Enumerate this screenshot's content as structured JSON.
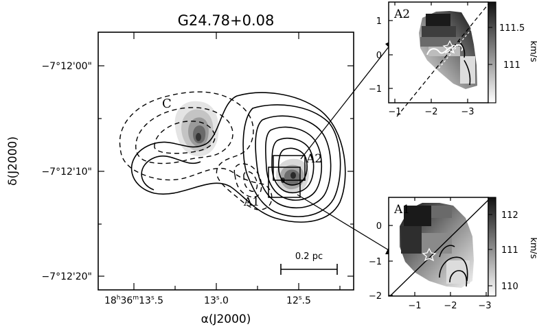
{
  "main_panel": {
    "title": "G24.78+0.08",
    "xlabel": "α(J2000)",
    "ylabel": "δ(J2000)",
    "x_ticks": [
      {
        "value": "18h36m13.5s",
        "parts": {
          "h": "18",
          "m": "36",
          "sec": "13",
          "frac": ".5"
        }
      },
      {
        "value": "13.0",
        "parts": {
          "sec": "13",
          "frac": ".0"
        }
      },
      {
        "value": "12.5",
        "parts": {
          "sec": "12",
          "frac": ".5"
        }
      }
    ],
    "y_ticks": [
      "−7°12'00\"",
      "−7°12'10\"",
      "−7°12'20\""
    ],
    "source_labels": {
      "c": "C",
      "a2": "A2",
      "a1": "A1"
    },
    "scalebar_label": "0.2 pc"
  },
  "inset_a2": {
    "label": "A2",
    "x_ticks": [
      "−1",
      "−2",
      "−3"
    ],
    "y_ticks": [
      "1",
      "0",
      "−1"
    ],
    "colorbar_ticks": [
      "111.5",
      "111"
    ],
    "colorbar_unit": "km/s"
  },
  "inset_a1": {
    "label": "A1",
    "x_ticks": [
      "−1",
      "−2",
      "−3"
    ],
    "y_ticks": [
      "0",
      "−1",
      "−2"
    ],
    "colorbar_ticks": [
      "112",
      "111",
      "110"
    ],
    "colorbar_unit": "km/s"
  }
}
